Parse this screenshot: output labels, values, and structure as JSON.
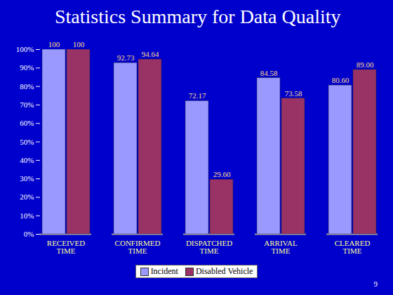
{
  "chart_data": {
    "type": "bar",
    "title": "Statistics Summary for Data Quality",
    "categories": [
      "RECEIVED TIME",
      "CONFIRMED TIME",
      "DISPATCHED TIME",
      "ARRIVAL TIME",
      "CLEARED TIME"
    ],
    "series": [
      {
        "name": "Incident",
        "color": "#9999ff",
        "values": [
          100,
          92.73,
          72.17,
          84.58,
          80.6
        ],
        "value_labels": [
          "100",
          "92.73",
          "72.17",
          "84.58",
          "80.60"
        ]
      },
      {
        "name": "Disabled Vehicle",
        "color": "#993366",
        "values": [
          100,
          94.64,
          29.6,
          73.58,
          89.0
        ],
        "value_labels": [
          "100",
          "94.64",
          "29.60",
          "73.58",
          "89.00"
        ]
      }
    ],
    "ylim": [
      0,
      100
    ],
    "yticks": [
      {
        "value": 0,
        "label": "0%"
      },
      {
        "value": 10,
        "label": "10%"
      },
      {
        "value": 20,
        "label": "20%"
      },
      {
        "value": 30,
        "label": "30%"
      },
      {
        "value": 40,
        "label": "40%"
      },
      {
        "value": 50,
        "label": "50%"
      },
      {
        "value": 60,
        "label": "60%"
      },
      {
        "value": 70,
        "label": "70%"
      },
      {
        "value": 80,
        "label": "80%"
      },
      {
        "value": 90,
        "label": "90%"
      },
      {
        "value": 100,
        "label": "100%"
      }
    ],
    "grid": false,
    "data_labels": true,
    "legend": "bottom",
    "annotations": [
      "9"
    ]
  }
}
